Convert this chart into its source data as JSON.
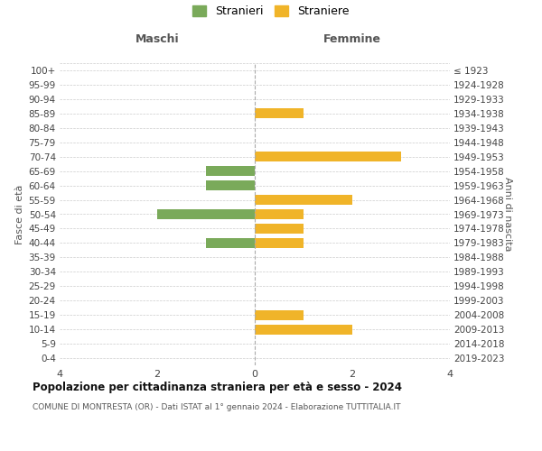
{
  "age_groups": [
    "100+",
    "95-99",
    "90-94",
    "85-89",
    "80-84",
    "75-79",
    "70-74",
    "65-69",
    "60-64",
    "55-59",
    "50-54",
    "45-49",
    "40-44",
    "35-39",
    "30-34",
    "25-29",
    "20-24",
    "15-19",
    "10-14",
    "5-9",
    "0-4"
  ],
  "birth_years": [
    "≤ 1923",
    "1924-1928",
    "1929-1933",
    "1934-1938",
    "1939-1943",
    "1944-1948",
    "1949-1953",
    "1954-1958",
    "1959-1963",
    "1964-1968",
    "1969-1973",
    "1974-1978",
    "1979-1983",
    "1984-1988",
    "1989-1993",
    "1994-1998",
    "1999-2003",
    "2004-2008",
    "2009-2013",
    "2014-2018",
    "2019-2023"
  ],
  "maschi": [
    0,
    0,
    0,
    0,
    0,
    0,
    0,
    1,
    1,
    0,
    2,
    0,
    1,
    0,
    0,
    0,
    0,
    0,
    0,
    0,
    0
  ],
  "femmine": [
    0,
    0,
    0,
    1,
    0,
    0,
    3,
    0,
    0,
    2,
    1,
    1,
    1,
    0,
    0,
    0,
    0,
    1,
    2,
    0,
    0
  ],
  "color_maschi": "#7aaa5a",
  "color_femmine": "#f0b429",
  "xlim": 4,
  "title": "Popolazione per cittadinanza straniera per età e sesso - 2024",
  "subtitle": "COMUNE DI MONTRESTA (OR) - Dati ISTAT al 1° gennaio 2024 - Elaborazione TUTTITALIA.IT",
  "ylabel_left": "Fasce di età",
  "ylabel_right": "Anni di nascita",
  "label_maschi": "Stranieri",
  "label_femmine": "Straniere",
  "header_left": "Maschi",
  "header_right": "Femmine",
  "background_color": "#ffffff",
  "grid_color": "#cccccc",
  "bar_height": 0.7,
  "xticks": [
    -4,
    -2,
    0,
    2,
    4
  ],
  "xticklabels": [
    "4",
    "2",
    "0",
    "2",
    "4"
  ]
}
